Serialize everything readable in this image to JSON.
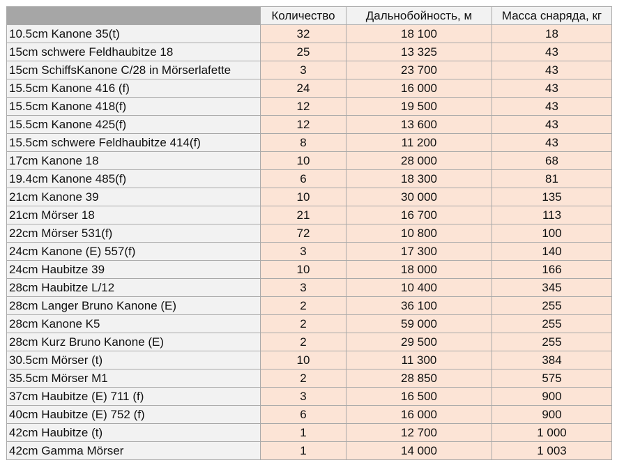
{
  "table": {
    "headers": [
      "",
      "Количество",
      "Дальнобойность, м",
      "Масса снаряда, кг"
    ],
    "rows": [
      [
        "10.5cm Kanone 35(t)",
        "32",
        "18 100",
        "18"
      ],
      [
        "15cm schwere Feldhaubitze 18",
        "25",
        "13 325",
        "43"
      ],
      [
        "15cm SchiffsKanone C/28 in Mörserlafette",
        "3",
        "23 700",
        "43"
      ],
      [
        "15.5cm Kanone 416 (f)",
        "24",
        "16 000",
        "43"
      ],
      [
        "15.5cm Kanone 418(f)",
        "12",
        "19 500",
        "43"
      ],
      [
        "15.5cm Kanone 425(f)",
        "12",
        "13 600",
        "43"
      ],
      [
        "15.5cm schwere Feldhaubitze 414(f)",
        "8",
        "11 200",
        "43"
      ],
      [
        "17cm Kanone 18",
        "10",
        "28 000",
        "68"
      ],
      [
        "19.4cm Kanone 485(f)",
        "6",
        "18 300",
        "81"
      ],
      [
        "21cm Kanone 39",
        "10",
        "30 000",
        "135"
      ],
      [
        "21cm Mörser 18",
        "21",
        "16 700",
        "113"
      ],
      [
        "22cm Mörser 531(f)",
        "72",
        "10 800",
        "100"
      ],
      [
        "24cm Kanone (E) 557(f)",
        "3",
        "17 300",
        "140"
      ],
      [
        "24cm Haubitze 39",
        "10",
        "18 000",
        "166"
      ],
      [
        "28cm Haubitze L/12",
        "3",
        "10 400",
        "345"
      ],
      [
        "28cm Langer Bruno Kanone (E)",
        "2",
        "36 100",
        "255"
      ],
      [
        "28cm Kanone K5",
        "2",
        "59 000",
        "255"
      ],
      [
        "28cm Kurz Bruno Kanone (E)",
        "2",
        "29 500",
        "255"
      ],
      [
        "30.5cm Mörser (t)",
        "10",
        "11 300",
        "384"
      ],
      [
        "35.5cm Mörser M1",
        "2",
        "28 850",
        "575"
      ],
      [
        "37cm Haubitze (E) 711 (f)",
        "3",
        "16 500",
        "900"
      ],
      [
        "40cm Haubitze (E) 752 (f)",
        "6",
        "16 000",
        "900"
      ],
      [
        "42cm Haubitze (t)",
        "1",
        "12 700",
        "1 000"
      ],
      [
        "42cm Gamma Mörser",
        "1",
        "14 000",
        "1 003"
      ]
    ]
  },
  "colors": {
    "header_fill": "#f2f2f2",
    "corner_fill": "#a6a6a6",
    "name_fill": "#f2f2f2",
    "value_fill": "#fce4d6",
    "border": "#a9a9a9"
  }
}
